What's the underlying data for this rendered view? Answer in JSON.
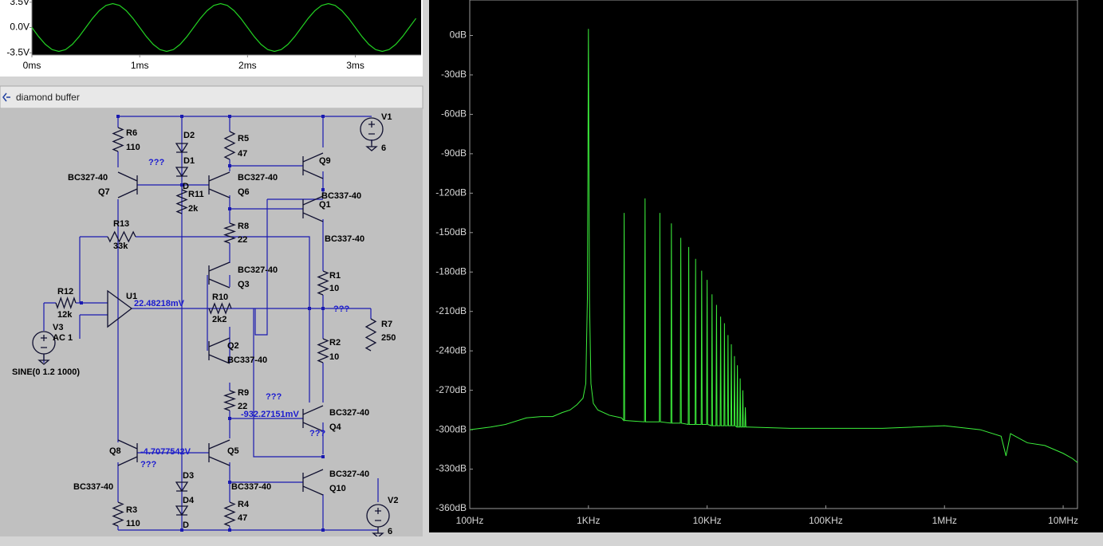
{
  "waveform": {
    "type": "line",
    "color": "#22d022",
    "xlim": [
      0,
      3.61
    ],
    "ylim": [
      -3.8,
      3.8
    ],
    "xticks": [
      {
        "value": 0,
        "label": "0ms"
      },
      {
        "value": 1,
        "label": "1ms"
      },
      {
        "value": 2,
        "label": "2ms"
      },
      {
        "value": 3,
        "label": "3ms"
      }
    ],
    "yticks": [
      {
        "value": 3.5,
        "label": "3.5V"
      },
      {
        "value": 0,
        "label": "0.0V"
      },
      {
        "value": -3.5,
        "label": "-3.5V"
      }
    ],
    "x": [
      0,
      0.0625,
      0.125,
      0.1875,
      0.25,
      0.3125,
      0.375,
      0.4375,
      0.5,
      0.5625,
      0.625,
      0.6875,
      0.75,
      0.8125,
      0.875,
      0.9375,
      1,
      1.0625,
      1.125,
      1.1875,
      1.25,
      1.3125,
      1.375,
      1.4375,
      1.5,
      1.5625,
      1.625,
      1.6875,
      1.75,
      1.8125,
      1.875,
      1.9375,
      2,
      2.0625,
      2.125,
      2.1875,
      2.25,
      2.3125,
      2.375,
      2.4375,
      2.5,
      2.5625,
      2.625,
      2.6875,
      2.75,
      2.8125,
      2.875,
      2.9375,
      3,
      3.0625,
      3.125,
      3.1875,
      3.25,
      3.3125,
      3.375,
      3.4375,
      3.5,
      3.5625
    ],
    "values": [
      0,
      -1.26,
      -2.33,
      -3.05,
      -3.3,
      -3.05,
      -2.33,
      -1.26,
      0,
      1.26,
      2.33,
      3.05,
      3.3,
      3.05,
      2.33,
      1.26,
      0,
      -1.26,
      -2.33,
      -3.05,
      -3.3,
      -3.05,
      -2.33,
      -1.26,
      0,
      1.26,
      2.33,
      3.05,
      3.3,
      3.05,
      2.33,
      1.26,
      0,
      -1.26,
      -2.33,
      -3.05,
      -3.3,
      -3.05,
      -2.33,
      -1.26,
      0,
      1.26,
      2.33,
      3.05,
      3.3,
      3.05,
      2.33,
      1.26,
      0,
      -1.26,
      -2.33,
      -3.05,
      -3.3,
      -3.05,
      -2.33,
      -1.26,
      0,
      1.26
    ]
  },
  "spectrum": {
    "type": "line",
    "color": "#3cf03c",
    "log_x": true,
    "xlim": [
      100,
      13200000
    ],
    "ylim": [
      -360,
      27
    ],
    "xticks": [
      {
        "value": 100,
        "label": "100Hz"
      },
      {
        "value": 1000,
        "label": "1KHz"
      },
      {
        "value": 10000,
        "label": "10KHz"
      },
      {
        "value": 100000,
        "label": "100KHz"
      },
      {
        "value": 1000000,
        "label": "1MHz"
      },
      {
        "value": 10000000,
        "label": "10MHz"
      }
    ],
    "yticks": [
      {
        "value": 0,
        "label": "0dB"
      },
      {
        "value": -30,
        "label": "-30dB"
      },
      {
        "value": -60,
        "label": "-60dB"
      },
      {
        "value": -90,
        "label": "-90dB"
      },
      {
        "value": -120,
        "label": "-120dB"
      },
      {
        "value": -150,
        "label": "-150dB"
      },
      {
        "value": -180,
        "label": "-180dB"
      },
      {
        "value": -210,
        "label": "-210dB"
      },
      {
        "value": -240,
        "label": "-240dB"
      },
      {
        "value": -270,
        "label": "-270dB"
      },
      {
        "value": -300,
        "label": "-300dB"
      },
      {
        "value": -330,
        "label": "-330dB"
      },
      {
        "value": -360,
        "label": "-360dB"
      }
    ],
    "x": [
      100,
      150,
      200,
      300,
      400,
      500,
      600,
      700,
      800,
      900,
      950,
      980,
      1000,
      1020,
      1050,
      1100,
      1200,
      1500,
      1900,
      1980,
      2000,
      2020,
      2970,
      3000,
      3030,
      3960,
      4000,
      4040,
      4950,
      5000,
      5050,
      5940,
      6000,
      6060,
      6930,
      7000,
      7070,
      7920,
      8000,
      8080,
      8910,
      9000,
      9090,
      9900,
      10000,
      10100,
      10890,
      11000,
      11110,
      11880,
      12000,
      12120,
      12870,
      13000,
      13130,
      13860,
      14000,
      14140,
      14850,
      15000,
      15150,
      15840,
      16000,
      16160,
      16830,
      17000,
      17170,
      17820,
      18000,
      18180,
      18810,
      19000,
      19190,
      19800,
      20000,
      20200,
      20790,
      21000,
      21210,
      22000,
      50000,
      100000,
      300000,
      1000000,
      2000000,
      3000000,
      3300000,
      3600000,
      5000000,
      7000000,
      10000000,
      12000000,
      13200000
    ],
    "values": [
      -300,
      -298,
      -296,
      -291,
      -290,
      -290,
      -287,
      -285,
      -281,
      -276,
      -265,
      -200,
      5,
      -200,
      -265,
      -280,
      -285,
      -289,
      -291,
      -293,
      -135,
      -293,
      -294,
      -124,
      -294,
      -294,
      -135,
      -294,
      -295,
      -143,
      -295,
      -295,
      -154,
      -295,
      -296,
      -161,
      -296,
      -296,
      -170,
      -296,
      -296,
      -179,
      -296,
      -296,
      -186,
      -296,
      -297,
      -197,
      -297,
      -297,
      -205,
      -297,
      -297,
      -214,
      -297,
      -297,
      -219,
      -297,
      -297,
      -228,
      -297,
      -297,
      -235,
      -297,
      -297,
      -244,
      -297,
      -298,
      -251,
      -298,
      -298,
      -261,
      -298,
      -298,
      -270,
      -298,
      -298,
      -283,
      -298,
      -298,
      -299,
      -299,
      -299,
      -297,
      -300,
      -305,
      -320,
      -303,
      -310,
      -312,
      -318,
      -322,
      -325
    ]
  },
  "schematic": {
    "title": "diamond buffer",
    "labels": [
      "R6",
      "110",
      "D2",
      "D1",
      "???",
      "BC327-40",
      "Q7",
      "R11",
      "2k",
      "D",
      "R5",
      "47",
      "BC327-40",
      "Q6",
      "Q9",
      "BC337-40",
      "Q1",
      "V1",
      "6",
      "R13",
      "33k",
      "R8",
      "22",
      "BC337-40",
      "BC327-40",
      "Q3",
      "R1",
      "10",
      "R12",
      "12k",
      "U1",
      "22.48218mV",
      "R10",
      "2k2",
      "???",
      "R7",
      "250",
      "V3",
      "AC 1",
      "SINE(0 1.2 1000)",
      "Q2",
      "BC337-40",
      "R2",
      "10",
      "???",
      "R9",
      "22",
      "-932.27151mV",
      "BC327-40",
      "Q4",
      "???",
      "Q8",
      "-4.7077542V",
      "???",
      "Q5",
      "BC327-40",
      "BC337-40",
      "BC337-40",
      "D3",
      "Q10",
      "V2",
      "R3",
      "110",
      "D4",
      "R4",
      "47",
      "D",
      "6"
    ]
  }
}
